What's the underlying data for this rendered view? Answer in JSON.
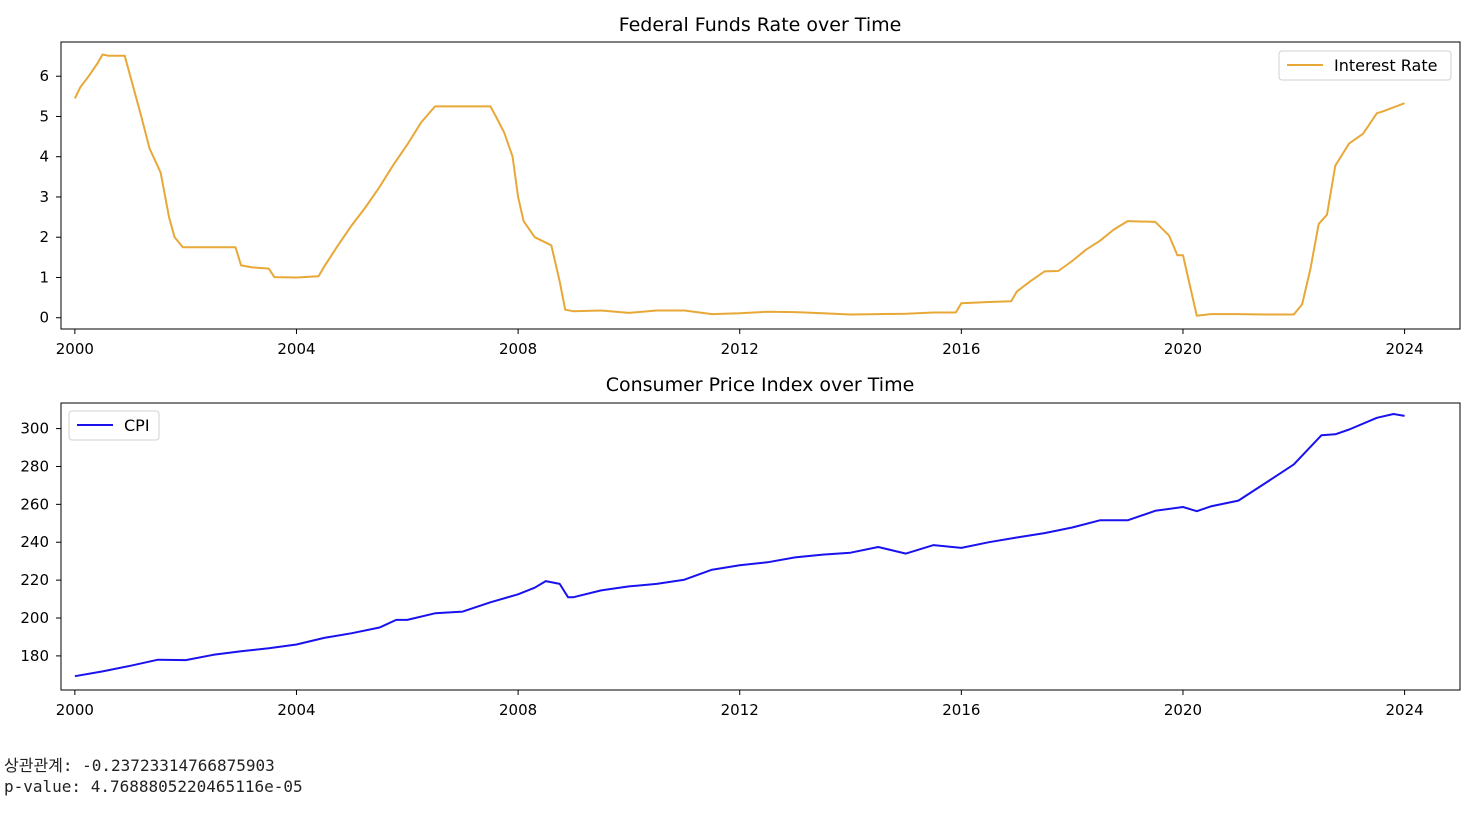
{
  "chart_data": [
    {
      "type": "line",
      "title": "Federal Funds Rate over Time",
      "xlabel": "",
      "ylabel": "",
      "xlim": [
        1999.75,
        2025.0
      ],
      "ylim": [
        -0.28,
        6.85
      ],
      "xticks": [
        2000,
        2004,
        2008,
        2012,
        2016,
        2020,
        2024
      ],
      "yticks": [
        0,
        1,
        2,
        3,
        4,
        5,
        6
      ],
      "grid": false,
      "legend_loc": "upper right",
      "series": [
        {
          "name": "Interest Rate",
          "color": "#e8a838",
          "x": [
            2000.0,
            2000.1,
            2000.25,
            2000.4,
            2000.5,
            2000.6,
            2000.75,
            2000.9,
            2001.0,
            2001.1,
            2001.2,
            2001.35,
            2001.45,
            2001.55,
            2001.7,
            2001.8,
            2001.95,
            2002.1,
            2002.5,
            2002.9,
            2003.0,
            2003.2,
            2003.5,
            2003.6,
            2004.0,
            2004.4,
            2004.5,
            2004.75,
            2005.0,
            2005.25,
            2005.5,
            2005.75,
            2006.0,
            2006.25,
            2006.5,
            2007.0,
            2007.5,
            2007.6,
            2007.75,
            2007.9,
            2008.0,
            2008.1,
            2008.3,
            2008.6,
            2008.75,
            2008.85,
            2009.0,
            2009.5,
            2010.0,
            2010.5,
            2011.0,
            2011.5,
            2012.0,
            2012.5,
            2013.0,
            2013.5,
            2014.0,
            2014.5,
            2015.0,
            2015.5,
            2015.9,
            2016.0,
            2016.5,
            2016.9,
            2017.0,
            2017.25,
            2017.5,
            2017.75,
            2018.0,
            2018.25,
            2018.5,
            2018.75,
            2019.0,
            2019.5,
            2019.75,
            2019.9,
            2020.0,
            2020.15,
            2020.25,
            2020.5,
            2021.0,
            2021.5,
            2022.0,
            2022.15,
            2022.3,
            2022.45,
            2022.6,
            2022.75,
            2023.0,
            2023.25,
            2023.5,
            2023.6,
            2024.0
          ],
          "y": [
            5.45,
            5.73,
            6.0,
            6.3,
            6.54,
            6.51,
            6.51,
            6.51,
            6.0,
            5.5,
            5.0,
            4.2,
            3.9,
            3.6,
            2.5,
            2.0,
            1.75,
            1.75,
            1.75,
            1.75,
            1.3,
            1.25,
            1.22,
            1.01,
            1.0,
            1.03,
            1.27,
            1.8,
            2.3,
            2.75,
            3.25,
            3.8,
            4.3,
            4.85,
            5.25,
            5.25,
            5.25,
            5.0,
            4.6,
            4.0,
            3.0,
            2.4,
            2.0,
            1.8,
            0.9,
            0.2,
            0.16,
            0.18,
            0.12,
            0.18,
            0.18,
            0.09,
            0.11,
            0.15,
            0.14,
            0.11,
            0.08,
            0.09,
            0.1,
            0.13,
            0.13,
            0.36,
            0.39,
            0.41,
            0.65,
            0.91,
            1.15,
            1.16,
            1.41,
            1.69,
            1.91,
            2.19,
            2.4,
            2.38,
            2.04,
            1.55,
            1.55,
            0.65,
            0.05,
            0.09,
            0.09,
            0.08,
            0.08,
            0.33,
            1.21,
            2.33,
            2.56,
            3.78,
            4.33,
            4.57,
            5.08,
            5.12,
            5.33
          ]
        }
      ]
    },
    {
      "type": "line",
      "title": "Consumer Price Index over Time",
      "xlabel": "",
      "ylabel": "",
      "xlim": [
        1999.75,
        2025.0
      ],
      "ylim": [
        162.0,
        313.5
      ],
      "xticks": [
        2000,
        2004,
        2008,
        2012,
        2016,
        2020,
        2024
      ],
      "yticks": [
        180,
        200,
        220,
        240,
        260,
        280,
        300
      ],
      "grid": false,
      "legend_loc": "upper left",
      "series": [
        {
          "name": "CPI",
          "color": "#1a12ee",
          "x": [
            2000.0,
            2000.5,
            2001.0,
            2001.5,
            2002.0,
            2002.5,
            2003.0,
            2003.5,
            2004.0,
            2004.5,
            2005.0,
            2005.5,
            2005.8,
            2006.0,
            2006.5,
            2007.0,
            2007.5,
            2008.0,
            2008.3,
            2008.5,
            2008.75,
            2008.9,
            2009.0,
            2009.5,
            2010.0,
            2010.5,
            2011.0,
            2011.5,
            2012.0,
            2012.5,
            2013.0,
            2013.5,
            2014.0,
            2014.5,
            2015.0,
            2015.5,
            2016.0,
            2016.5,
            2017.0,
            2017.5,
            2018.0,
            2018.5,
            2019.0,
            2019.5,
            2020.0,
            2020.25,
            2020.5,
            2021.0,
            2021.5,
            2022.0,
            2022.5,
            2022.75,
            2023.0,
            2023.5,
            2023.8,
            2024.0
          ],
          "y": [
            169.3,
            171.8,
            174.8,
            178.0,
            177.8,
            180.6,
            182.5,
            184.0,
            186.0,
            189.5,
            192.0,
            195.0,
            199.0,
            199.0,
            202.5,
            203.4,
            208.3,
            212.5,
            216.0,
            219.5,
            218.0,
            211.0,
            211.0,
            214.6,
            216.7,
            218.0,
            220.2,
            225.5,
            227.8,
            229.4,
            232.0,
            233.5,
            234.5,
            237.5,
            234.0,
            238.5,
            237.0,
            240.0,
            242.5,
            244.8,
            247.8,
            251.6,
            251.6,
            256.6,
            258.6,
            256.4,
            258.9,
            262.0,
            271.5,
            281.1,
            296.5,
            297.0,
            299.5,
            305.7,
            307.7,
            306.7
          ]
        }
      ]
    }
  ],
  "output": {
    "correlation_line": "상관관계: -0.23723314766875903",
    "pvalue_line": "p-value: 4.768880522046511​6e-05"
  }
}
